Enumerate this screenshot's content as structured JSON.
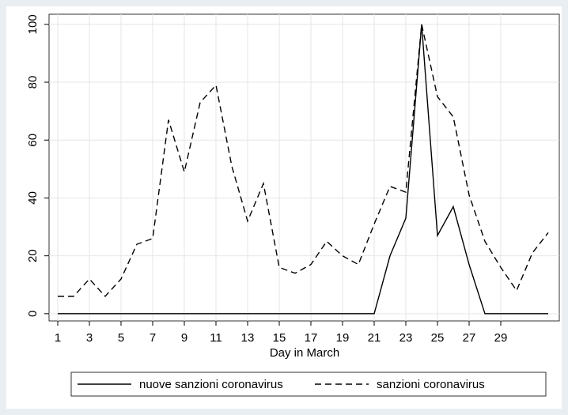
{
  "chart_data": {
    "type": "line",
    "xlabel": "Day in March",
    "x": [
      1,
      2,
      3,
      4,
      5,
      6,
      7,
      8,
      9,
      10,
      11,
      12,
      13,
      14,
      15,
      16,
      17,
      18,
      19,
      20,
      21,
      22,
      23,
      24,
      25,
      26,
      27,
      28,
      29,
      30,
      31,
      32
    ],
    "series": [
      {
        "name": "nuove sanzioni coronavirus",
        "color": "#000000",
        "dash": "solid",
        "values": [
          0,
          0,
          0,
          0,
          0,
          0,
          0,
          0,
          0,
          0,
          0,
          0,
          0,
          0,
          0,
          0,
          0,
          0,
          0,
          0,
          0,
          20,
          33,
          100,
          27,
          37,
          17,
          0,
          0,
          0,
          0,
          0
        ]
      },
      {
        "name": "sanzioni coronavirus",
        "color": "#000000",
        "dash": "dashed",
        "values": [
          6,
          6,
          12,
          6,
          12,
          24,
          26,
          67,
          49,
          73,
          79,
          51,
          32,
          45,
          16,
          14,
          17,
          25,
          20,
          17,
          31,
          44,
          42,
          100,
          75,
          68,
          41,
          25,
          16,
          8,
          21,
          28
        ]
      }
    ],
    "xlim": [
      0.45,
      32.7
    ],
    "ylim": [
      -2.5,
      103.5
    ],
    "xticks": [
      1,
      3,
      5,
      7,
      9,
      11,
      13,
      15,
      17,
      19,
      21,
      23,
      25,
      27,
      29
    ],
    "yticks": [
      0,
      20,
      40,
      60,
      80,
      100
    ],
    "grid": true,
    "legend": "bottom"
  }
}
